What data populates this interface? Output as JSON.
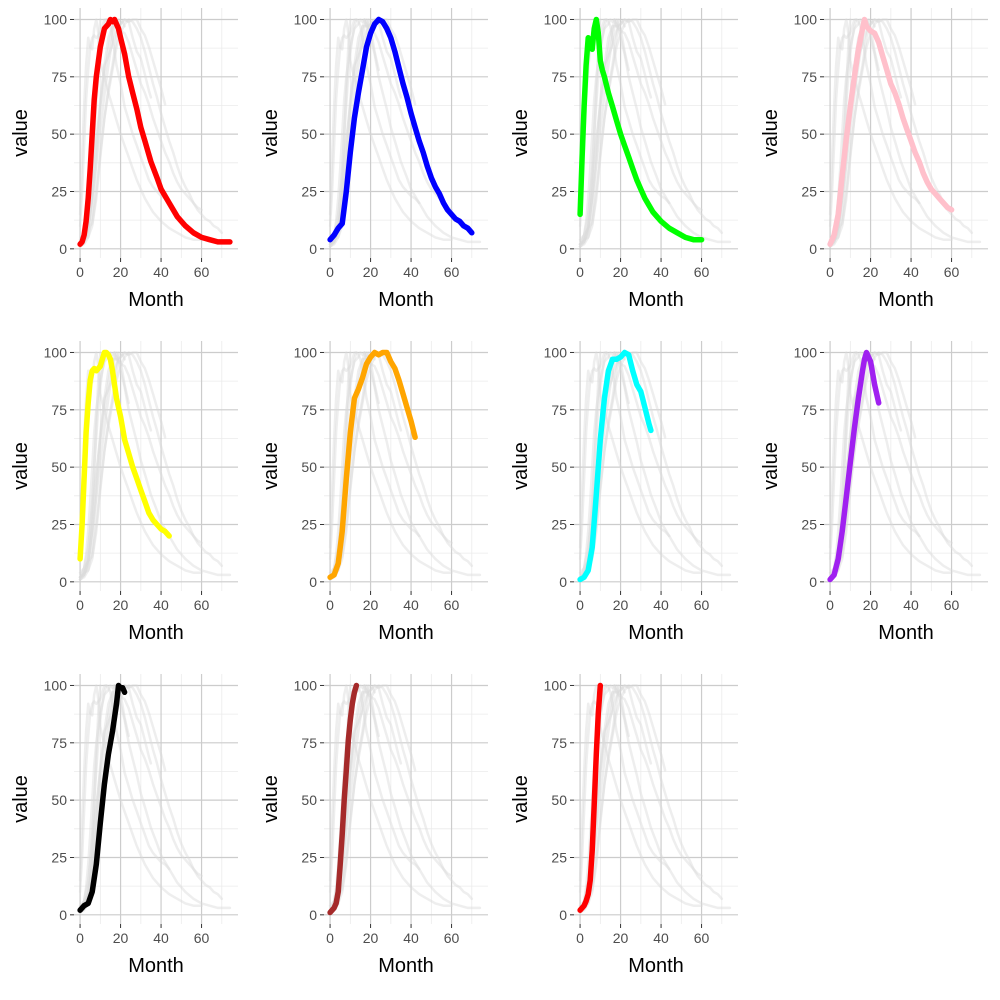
{
  "chart_data": {
    "type": "line",
    "layout": "small multiples, 3 rows x 4 columns",
    "xlabel": "Month",
    "ylabel": "value",
    "xlim": [
      -3,
      78
    ],
    "ylim": [
      -4,
      105
    ],
    "x_ticks": [
      0,
      20,
      40,
      60
    ],
    "y_ticks": [
      0,
      25,
      50,
      75,
      100
    ],
    "grid": true,
    "background_series_color": "#d9d9d9",
    "panels": [
      {
        "color": "#ff0000",
        "x": [
          0,
          1,
          2,
          3,
          4,
          5,
          6,
          7,
          8,
          10,
          12,
          14,
          15,
          16,
          17,
          18,
          19,
          20,
          22,
          24,
          26,
          28,
          30,
          32,
          35,
          38,
          40,
          44,
          48,
          52,
          56,
          60,
          64,
          68,
          72,
          74
        ],
        "y": [
          2,
          3,
          6,
          12,
          22,
          35,
          50,
          65,
          75,
          88,
          96,
          98,
          100,
          99,
          100,
          98,
          96,
          92,
          85,
          75,
          68,
          61,
          53,
          47,
          38,
          31,
          26,
          20,
          14,
          10,
          7,
          5,
          4,
          3,
          3,
          3
        ]
      },
      {
        "color": "#0000ff",
        "x": [
          0,
          2,
          4,
          6,
          8,
          10,
          12,
          14,
          16,
          18,
          20,
          22,
          24,
          26,
          28,
          30,
          32,
          34,
          36,
          38,
          40,
          42,
          44,
          46,
          48,
          50,
          52,
          54,
          56,
          58,
          60,
          62,
          64,
          66,
          68,
          70
        ],
        "y": [
          4,
          6,
          9,
          11,
          25,
          42,
          57,
          68,
          78,
          88,
          94,
          98,
          100,
          99,
          96,
          92,
          86,
          79,
          72,
          66,
          59,
          53,
          47,
          42,
          36,
          31,
          27,
          24,
          20,
          17,
          15,
          13,
          12,
          10,
          9,
          7
        ]
      },
      {
        "color": "#00ff00",
        "x": [
          0,
          1,
          2,
          3,
          4,
          5,
          6,
          7,
          8,
          9,
          10,
          11,
          12,
          14,
          16,
          18,
          20,
          22,
          24,
          26,
          28,
          30,
          32,
          34,
          36,
          38,
          40,
          44,
          48,
          52,
          56,
          60
        ],
        "y": [
          15,
          40,
          62,
          80,
          92,
          88,
          87,
          96,
          100,
          94,
          82,
          78,
          75,
          68,
          62,
          56,
          50,
          45,
          40,
          35,
          30,
          26,
          22,
          19,
          16,
          14,
          12,
          9,
          7,
          5,
          4,
          4
        ]
      },
      {
        "color": "#ffc0cb",
        "x": [
          0,
          2,
          4,
          6,
          8,
          10,
          12,
          14,
          16,
          17,
          18,
          20,
          22,
          24,
          26,
          28,
          30,
          32,
          34,
          36,
          38,
          40,
          42,
          44,
          46,
          48,
          50,
          52,
          54,
          56,
          58,
          60
        ],
        "y": [
          2,
          6,
          15,
          32,
          48,
          62,
          75,
          87,
          96,
          100,
          97,
          95,
          94,
          90,
          84,
          78,
          72,
          68,
          63,
          57,
          52,
          47,
          42,
          38,
          33,
          29,
          26,
          24,
          22,
          20,
          18,
          17
        ]
      },
      {
        "color": "#ffff00",
        "x": [
          0,
          1,
          2,
          3,
          4,
          5,
          6,
          7,
          8,
          10,
          11,
          12,
          13,
          14,
          15,
          16,
          17,
          18,
          20,
          22,
          24,
          26,
          28,
          30,
          32,
          34,
          36,
          38,
          40,
          42,
          44
        ],
        "y": [
          10,
          25,
          45,
          65,
          78,
          88,
          92,
          93,
          92,
          94,
          97,
          100,
          100,
          99,
          97,
          92,
          86,
          80,
          72,
          62,
          56,
          50,
          45,
          40,
          35,
          30,
          27,
          25,
          23,
          22,
          20
        ]
      },
      {
        "color": "#ffa500",
        "x": [
          0,
          2,
          4,
          6,
          8,
          10,
          12,
          14,
          16,
          18,
          20,
          22,
          24,
          26,
          28,
          30,
          32,
          34,
          36,
          38,
          40,
          42
        ],
        "y": [
          2,
          3,
          8,
          22,
          45,
          65,
          80,
          84,
          89,
          95,
          98,
          100,
          99,
          100,
          100,
          96,
          93,
          88,
          82,
          76,
          70,
          63
        ]
      },
      {
        "color": "#00ffff",
        "x": [
          0,
          2,
          4,
          6,
          8,
          10,
          12,
          14,
          16,
          18,
          20,
          22,
          24,
          26,
          28,
          30,
          32,
          34,
          35
        ],
        "y": [
          1,
          2,
          5,
          15,
          38,
          62,
          80,
          92,
          97,
          97,
          98,
          100,
          99,
          92,
          86,
          83,
          76,
          69,
          66
        ]
      },
      {
        "color": "#a020f0",
        "x": [
          0,
          2,
          4,
          6,
          8,
          10,
          12,
          14,
          16,
          17,
          18,
          19,
          20,
          22,
          24
        ],
        "y": [
          1,
          3,
          10,
          22,
          37,
          52,
          67,
          80,
          92,
          97,
          100,
          98,
          96,
          86,
          78
        ]
      },
      {
        "color": "#000000",
        "x": [
          0,
          2,
          4,
          6,
          8,
          10,
          12,
          14,
          16,
          18,
          19,
          20,
          21,
          22
        ],
        "y": [
          2,
          4,
          5,
          10,
          22,
          40,
          57,
          70,
          80,
          92,
          100,
          99,
          99,
          97
        ]
      },
      {
        "color": "#a52a2a",
        "x": [
          0,
          1,
          2,
          3,
          4,
          5,
          6,
          7,
          8,
          9,
          10,
          11,
          12,
          13
        ],
        "y": [
          1,
          2,
          3,
          5,
          10,
          22,
          35,
          50,
          63,
          76,
          85,
          92,
          97,
          100
        ]
      },
      {
        "color": "#ff0000",
        "x": [
          0,
          1,
          2,
          3,
          4,
          5,
          6,
          7,
          8,
          9,
          10
        ],
        "y": [
          2,
          3,
          4,
          6,
          9,
          15,
          28,
          48,
          70,
          88,
          100
        ]
      }
    ]
  }
}
